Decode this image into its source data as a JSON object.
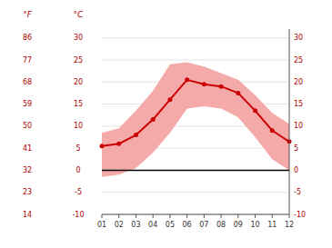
{
  "chart_data": {
    "type": "line",
    "x": [
      1,
      2,
      3,
      4,
      5,
      6,
      7,
      8,
      9,
      10,
      11,
      12
    ],
    "series": [
      {
        "type": "band",
        "color": "#f5aaaa",
        "values": [
          8.5,
          9.5,
          13.5,
          18.0,
          24.0,
          24.5,
          23.5,
          22.0,
          20.5,
          17.0,
          13.0,
          10.5
        ],
        "low": [
          -1.5,
          -1.0,
          0.5,
          4.0,
          8.5,
          14.0,
          14.5,
          14.0,
          12.0,
          7.5,
          2.5,
          0.0
        ]
      },
      {
        "type": "line",
        "color": "#cc0000",
        "marker": "circle",
        "values": [
          5.5,
          6.0,
          8.0,
          11.5,
          16.0,
          20.5,
          19.5,
          19.0,
          17.5,
          13.5,
          9.0,
          6.5
        ]
      }
    ],
    "xlim": [
      1,
      12
    ],
    "xticks": [
      {
        "value": 1,
        "label": "01"
      },
      {
        "value": 2,
        "label": "02"
      },
      {
        "value": 3,
        "label": "03"
      },
      {
        "value": 4,
        "label": "04"
      },
      {
        "value": 5,
        "label": "05"
      },
      {
        "value": 6,
        "label": "06"
      },
      {
        "value": 7,
        "label": "07"
      },
      {
        "value": 8,
        "label": "08"
      },
      {
        "value": 9,
        "label": "09"
      },
      {
        "value": 10,
        "label": "10"
      },
      {
        "value": 11,
        "label": "11"
      },
      {
        "value": 12,
        "label": "12"
      }
    ],
    "ylim": [
      -10,
      32
    ],
    "yticks": [
      -10,
      -5,
      0,
      5,
      10,
      15,
      20,
      25,
      30
    ],
    "ylabel": "°C",
    "y2lim": [
      14,
      89.6
    ],
    "y2ticks": [
      14,
      23,
      32,
      41,
      50,
      59,
      68,
      77,
      86
    ],
    "y2label": "°F",
    "grid": true
  }
}
